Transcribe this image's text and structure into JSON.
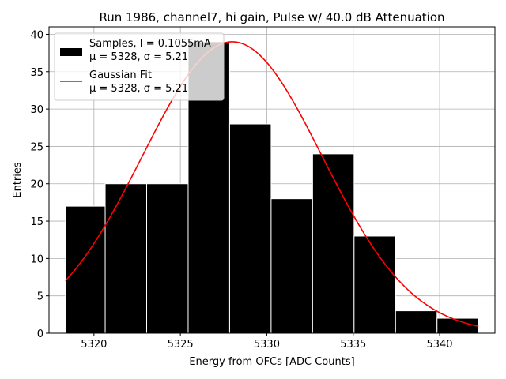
{
  "chart_data": {
    "type": "bar",
    "title": "Run 1986, channel7, hi gain, Pulse w/ 40.0 dB Attenuation",
    "xlabel": "Energy from OFCs [ADC Counts]",
    "ylabel": "Entries",
    "xlim": [
      5317.4,
      5343.2
    ],
    "ylim": [
      0,
      41
    ],
    "xticks": [
      5320,
      5325,
      5330,
      5335,
      5340
    ],
    "yticks": [
      0,
      5,
      10,
      15,
      20,
      25,
      30,
      35,
      40
    ],
    "grid": true,
    "legend_position": "top-left",
    "bins": [
      {
        "x0": 5318.35,
        "x1": 5320.65,
        "count": 17
      },
      {
        "x0": 5320.65,
        "x1": 5323.05,
        "count": 20
      },
      {
        "x0": 5323.05,
        "x1": 5325.45,
        "count": 20
      },
      {
        "x0": 5325.45,
        "x1": 5327.85,
        "count": 39
      },
      {
        "x0": 5327.85,
        "x1": 5330.25,
        "count": 28
      },
      {
        "x0": 5330.25,
        "x1": 5332.65,
        "count": 18
      },
      {
        "x0": 5332.65,
        "x1": 5335.05,
        "count": 24
      },
      {
        "x0": 5335.05,
        "x1": 5337.45,
        "count": 13
      },
      {
        "x0": 5337.45,
        "x1": 5339.85,
        "count": 3
      },
      {
        "x0": 5339.85,
        "x1": 5342.25,
        "count": 2
      }
    ],
    "fit": {
      "mu": 5328,
      "sigma": 5.21,
      "amplitude": 39,
      "x_range": [
        5318.35,
        5342.25
      ]
    },
    "series": [
      {
        "name": "Samples, I = 0.1055mA",
        "name_line2": "μ = 5328, σ = 5.21",
        "color": "#000000",
        "kind": "histogram"
      },
      {
        "name": "Gaussian Fit",
        "name_line2": "μ = 5328, σ = 5.21",
        "color": "#ff0000",
        "kind": "line"
      }
    ]
  }
}
